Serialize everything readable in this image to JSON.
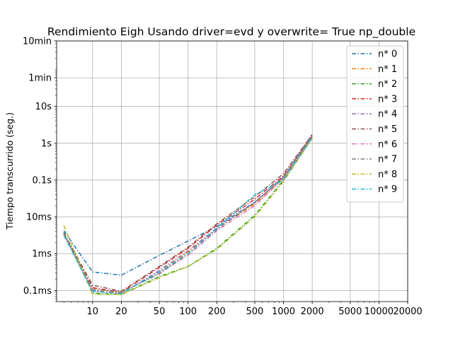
{
  "chart_data": {
    "type": "line",
    "title": "Rendimiento   Eigh Usando driver=evd y overwrite= True np_double",
    "xlabel": "",
    "ylabel": "Tiempo transcurrido (seg.)",
    "x_scale": "log",
    "y_scale": "log",
    "xlim": [
      4.2,
      20000
    ],
    "ylim": [
      5e-05,
      600
    ],
    "grid": true,
    "legend_position": "top-right",
    "x_ticks": [
      {
        "value": 10,
        "label": "10"
      },
      {
        "value": 20,
        "label": "20"
      },
      {
        "value": 50,
        "label": "50"
      },
      {
        "value": 100,
        "label": "100"
      },
      {
        "value": 200,
        "label": "200"
      },
      {
        "value": 500,
        "label": "500"
      },
      {
        "value": 1000,
        "label": "1000"
      },
      {
        "value": 2000,
        "label": "2000"
      },
      {
        "value": 5000,
        "label": "5000"
      },
      {
        "value": 10000,
        "label": "10000"
      },
      {
        "value": 20000,
        "label": "20000"
      }
    ],
    "y_ticks": [
      {
        "value": 0.0001,
        "label": "0.1ms"
      },
      {
        "value": 0.001,
        "label": "1ms"
      },
      {
        "value": 0.01,
        "label": "10ms"
      },
      {
        "value": 0.1,
        "label": "0.1s"
      },
      {
        "value": 1,
        "label": "1s"
      },
      {
        "value": 10,
        "label": "10s"
      },
      {
        "value": 60,
        "label": "1min"
      },
      {
        "value": 600,
        "label": "10min"
      }
    ],
    "x": [
      5,
      10,
      20,
      50,
      100,
      200,
      500,
      1000,
      2000
    ],
    "series": [
      {
        "name": "n* 0",
        "color": "#1f77b4",
        "values": [
          0.0042,
          0.00032,
          0.00026,
          0.0009,
          0.0022,
          0.0055,
          0.025,
          0.12,
          1.6
        ]
      },
      {
        "name": "n* 1",
        "color": "#ff7f0e",
        "values": [
          0.0035,
          0.00011,
          8.5e-05,
          0.00032,
          0.0011,
          0.0048,
          0.022,
          0.11,
          1.5
        ]
      },
      {
        "name": "n* 2",
        "color": "#2ca02c",
        "values": [
          0.0038,
          8.5e-05,
          7.8e-05,
          0.00024,
          0.00045,
          0.0014,
          0.011,
          0.1,
          1.4
        ]
      },
      {
        "name": "n* 3",
        "color": "#d62728",
        "values": [
          0.0036,
          0.00012,
          9e-05,
          0.00042,
          0.0014,
          0.006,
          0.03,
          0.13,
          1.55
        ]
      },
      {
        "name": "n* 4",
        "color": "#9467bd",
        "values": [
          0.0034,
          0.0001,
          8.2e-05,
          0.00035,
          0.0012,
          0.005,
          0.024,
          0.12,
          1.8
        ]
      },
      {
        "name": "n* 5",
        "color": "#8c564b",
        "values": [
          0.0037,
          0.00014,
          9.5e-05,
          0.00045,
          0.0015,
          0.0065,
          0.035,
          0.15,
          1.7
        ]
      },
      {
        "name": "n* 6",
        "color": "#e377c2",
        "values": [
          0.0033,
          9.5e-05,
          8.5e-05,
          0.0003,
          0.0009,
          0.0042,
          0.02,
          0.11,
          1.5
        ]
      },
      {
        "name": "n* 7",
        "color": "#7f7f7f",
        "values": [
          0.0036,
          0.00011,
          9e-05,
          0.00028,
          0.001,
          0.0045,
          0.025,
          0.12,
          1.6
        ]
      },
      {
        "name": "n* 8",
        "color": "#bcbd22",
        "values": [
          0.0058,
          7.8e-05,
          7.8e-05,
          0.00022,
          0.00045,
          0.0013,
          0.01,
          0.09,
          1.35
        ]
      },
      {
        "name": "n* 9",
        "color": "#17becf",
        "values": [
          0.0031,
          9.5e-05,
          8.2e-05,
          0.00032,
          0.001,
          0.0048,
          0.04,
          0.1,
          1.4
        ]
      }
    ]
  }
}
